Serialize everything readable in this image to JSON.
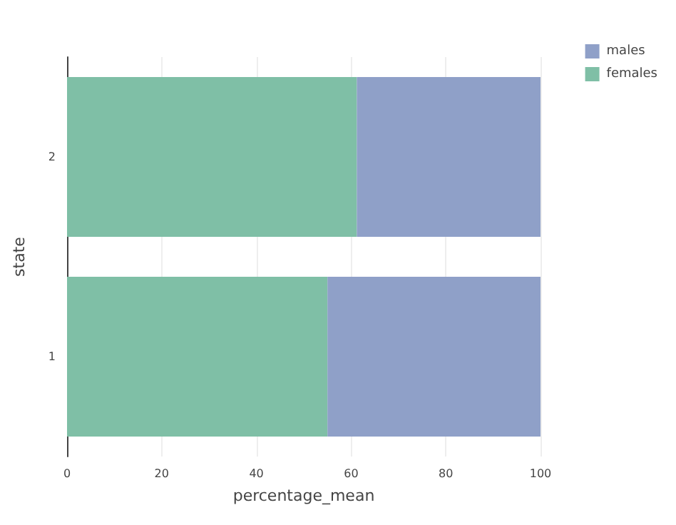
{
  "chart_data": {
    "type": "bar",
    "orientation": "horizontal",
    "stacked": true,
    "xlabel": "percentage_mean",
    "ylabel": "state",
    "categories": [
      "2",
      "1"
    ],
    "series": [
      {
        "name": "females",
        "color": "#7fbfa6",
        "values": [
          61.2,
          55.0
        ]
      },
      {
        "name": "males",
        "color": "#8fa0c8",
        "values": [
          38.8,
          45.0
        ]
      }
    ],
    "xlim": [
      0,
      100
    ],
    "xticks": [
      0,
      20,
      40,
      60,
      80,
      100
    ],
    "grid": "x",
    "legend": "top right"
  }
}
